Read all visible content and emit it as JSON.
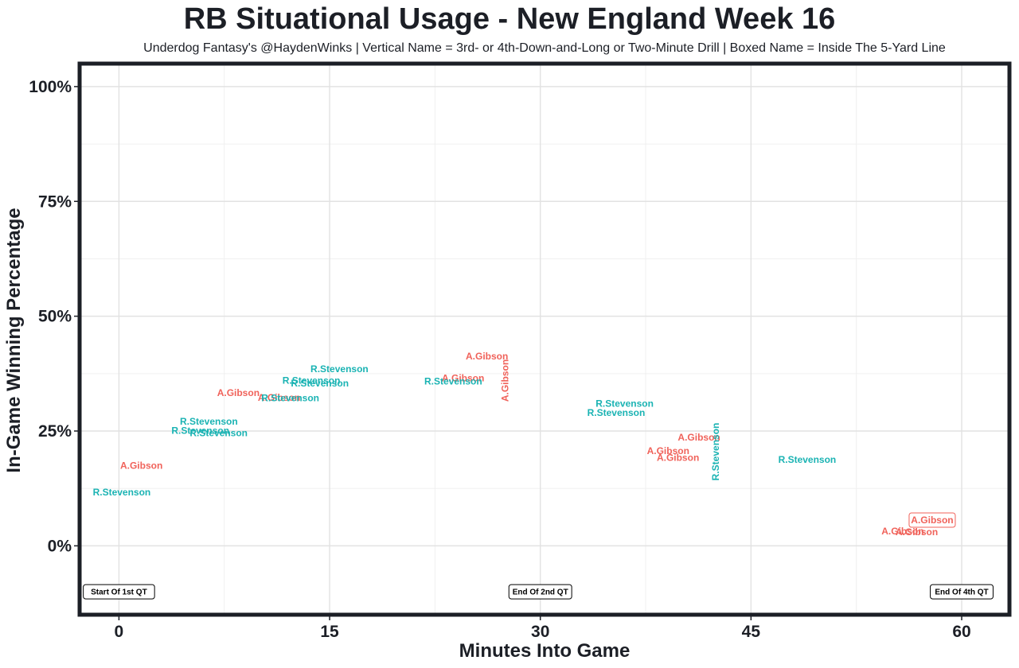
{
  "chart_data": {
    "type": "scatter",
    "title": "RB Situational Usage - New England Week 16",
    "subtitle": "Underdog Fantasy's @HaydenWinks | Vertical Name = 3rd- or 4th-Down-and-Long or Two-Minute Drill | Boxed Name = Inside The 5-Yard Line",
    "xlabel": "Minutes Into Game",
    "ylabel": "In-Game Winning Percentage",
    "xlim": [
      -2.8,
      63.4
    ],
    "ylim": [
      -15,
      105
    ],
    "x_ticks": [
      0,
      15,
      30,
      45,
      60
    ],
    "x_tick_labels": [
      "0",
      "15",
      "30",
      "45",
      "60"
    ],
    "y_ticks": [
      0,
      25,
      50,
      75,
      100
    ],
    "y_tick_labels": [
      "0%",
      "25%",
      "50%",
      "75%",
      "100%"
    ],
    "grid": true,
    "legend": "none",
    "colors": {
      "A.Gibson": "#f0625a",
      "R.Stevenson": "#1ab3b3"
    },
    "series": [
      {
        "name": "A.Gibson",
        "points": [
          {
            "x": 1.6,
            "y": 17.5,
            "label": "A.Gibson",
            "vertical": false,
            "boxed": false
          },
          {
            "x": 8.5,
            "y": 33.3,
            "label": "A.Gibson",
            "vertical": false,
            "boxed": false
          },
          {
            "x": 11.4,
            "y": 32.3,
            "label": "A.Gibson",
            "vertical": false,
            "boxed": false
          },
          {
            "x": 24.5,
            "y": 36.5,
            "label": "A.Gibson",
            "vertical": false,
            "boxed": false
          },
          {
            "x": 26.2,
            "y": 41.3,
            "label": "A.Gibson",
            "vertical": false,
            "boxed": false
          },
          {
            "x": 27.5,
            "y": 36.0,
            "label": "A.Gibson",
            "vertical": true,
            "boxed": false
          },
          {
            "x": 39.1,
            "y": 20.7,
            "label": "A.Gibson",
            "vertical": false,
            "boxed": false
          },
          {
            "x": 39.8,
            "y": 19.2,
            "label": "A.Gibson",
            "vertical": false,
            "boxed": false
          },
          {
            "x": 41.3,
            "y": 23.6,
            "label": "A.Gibson",
            "vertical": false,
            "boxed": false
          },
          {
            "x": 55.8,
            "y": 3.2,
            "label": "A.Gibson",
            "vertical": false,
            "boxed": false
          },
          {
            "x": 56.8,
            "y": 3.0,
            "label": "A.Gibson",
            "vertical": false,
            "boxed": false
          },
          {
            "x": 57.9,
            "y": 5.6,
            "label": "A.Gibson",
            "vertical": false,
            "boxed": true
          }
        ]
      },
      {
        "name": "R.Stevenson",
        "points": [
          {
            "x": 0.2,
            "y": 11.7,
            "label": "R.Stevenson",
            "vertical": false,
            "boxed": false
          },
          {
            "x": 6.4,
            "y": 27.1,
            "label": "R.Stevenson",
            "vertical": false,
            "boxed": false
          },
          {
            "x": 5.8,
            "y": 25.1,
            "label": "R.Stevenson",
            "vertical": false,
            "boxed": false
          },
          {
            "x": 7.1,
            "y": 24.6,
            "label": "R.Stevenson",
            "vertical": false,
            "boxed": false
          },
          {
            "x": 12.2,
            "y": 32.2,
            "label": "R.Stevenson",
            "vertical": false,
            "boxed": false
          },
          {
            "x": 13.7,
            "y": 36.0,
            "label": "R.Stevenson",
            "vertical": false,
            "boxed": false
          },
          {
            "x": 14.3,
            "y": 35.4,
            "label": "R.Stevenson",
            "vertical": false,
            "boxed": false
          },
          {
            "x": 15.7,
            "y": 38.5,
            "label": "R.Stevenson",
            "vertical": false,
            "boxed": false
          },
          {
            "x": 23.8,
            "y": 35.8,
            "label": "R.Stevenson",
            "vertical": false,
            "boxed": false
          },
          {
            "x": 36.0,
            "y": 31.0,
            "label": "R.Stevenson",
            "vertical": false,
            "boxed": false
          },
          {
            "x": 35.4,
            "y": 29.0,
            "label": "R.Stevenson",
            "vertical": false,
            "boxed": false
          },
          {
            "x": 42.5,
            "y": 20.5,
            "label": "R.Stevenson",
            "vertical": true,
            "boxed": false
          },
          {
            "x": 49.0,
            "y": 18.8,
            "label": "R.Stevenson",
            "vertical": false,
            "boxed": false
          }
        ]
      }
    ],
    "annotations": [
      {
        "x": 0,
        "y": -10,
        "label": "Start Of 1st QT"
      },
      {
        "x": 30,
        "y": -10,
        "label": "End Of 2nd QT"
      },
      {
        "x": 60,
        "y": -10,
        "label": "End Of 4th QT"
      }
    ]
  }
}
